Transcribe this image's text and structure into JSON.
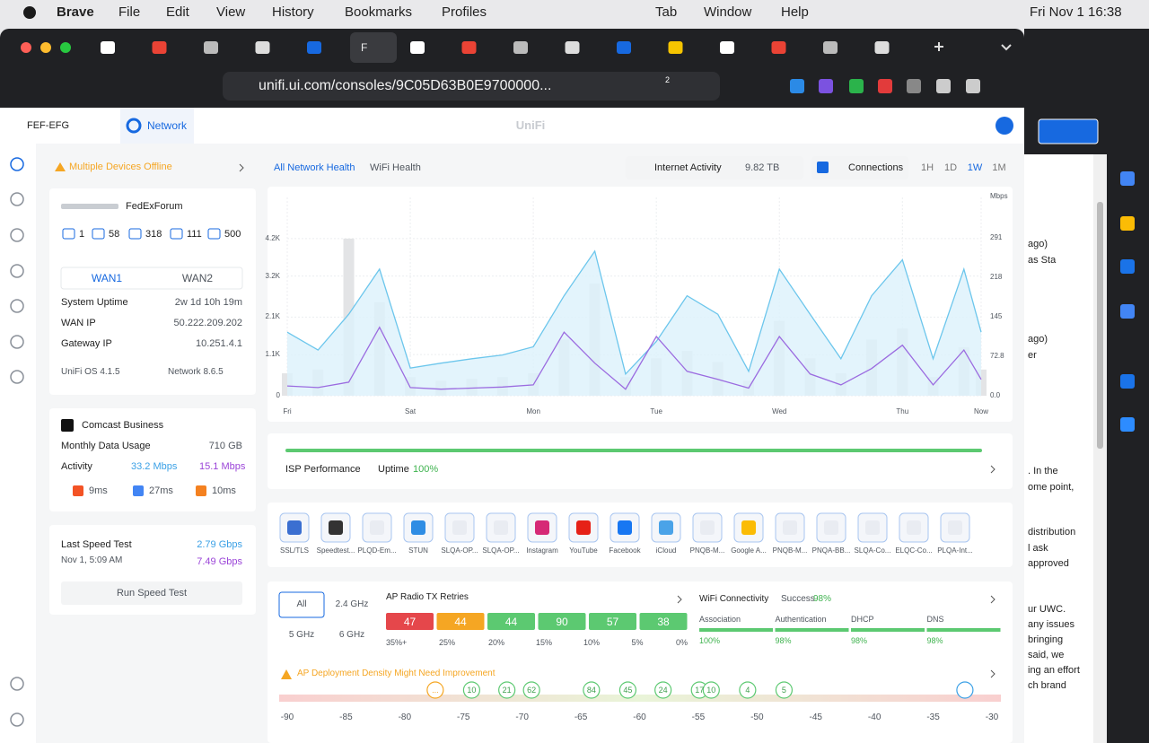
{
  "menubar": {
    "app": "Brave",
    "menus": [
      "File",
      "Edit",
      "View",
      "History",
      "Bookmarks",
      "Profiles"
    ],
    "right_menus": [
      "Tab",
      "Window",
      "Help"
    ],
    "clock": "Fri Nov 1  16:38"
  },
  "browser": {
    "active_tab": "F",
    "url": "unifi.ui.com/consoles/9C05D63B0E9700000...",
    "brave_badge": "2"
  },
  "unifi": {
    "site": "FEF-EFG",
    "nav_tab": "Network",
    "brand": "UniFi"
  },
  "alert": "Multiple Devices Offline",
  "gateway": {
    "name": "FedExForum",
    "stats": [
      "1",
      "58",
      "318",
      "111",
      "500"
    ],
    "wan_tabs": [
      "WAN1",
      "WAN2"
    ],
    "rows": [
      [
        "System Uptime",
        "2w 1d 10h 19m"
      ],
      [
        "WAN IP",
        "50.222.209.202"
      ],
      [
        "Gateway IP",
        "10.251.4.1"
      ]
    ],
    "versions": [
      "UniFi OS 4.1.5",
      "Network 8.6.5"
    ]
  },
  "isp": {
    "name": "Comcast Business",
    "monthly_label": "Monthly Data Usage",
    "monthly_value": "710 GB",
    "activity_label": "Activity",
    "down": "33.2 Mbps",
    "up": "15.1 Mbps",
    "latency": [
      "9ms",
      "27ms",
      "10ms"
    ]
  },
  "speed_test": {
    "label": "Last Speed Test",
    "date": "Nov 1, 5:09 AM",
    "down": "2.79 Gbps",
    "up": "7.49 Gbps",
    "button": "Run Speed Test"
  },
  "health_tabs": [
    "All Network Health",
    "WiFi Health"
  ],
  "legend": {
    "internet": "Internet Activity",
    "internet_total": "9.82 TB",
    "connections": "Connections"
  },
  "ranges": [
    "1H",
    "1D",
    "1W",
    "1M"
  ],
  "chart_data": {
    "type": "line",
    "y2_unit": "Mbps",
    "x": [
      0,
      0.25,
      0.5,
      0.75,
      1,
      1.25,
      1.5,
      1.75,
      2,
      2.25,
      2.5,
      2.75,
      3,
      3.25,
      3.5,
      3.75,
      4,
      4.25,
      4.5,
      4.75,
      5,
      5.25,
      5.5,
      5.64
    ],
    "xlim": [
      0,
      5.64
    ],
    "xticks": [
      {
        "value": 0,
        "label": "Fri"
      },
      {
        "value": 1,
        "label": "Sat"
      },
      {
        "value": 2,
        "label": "Mon"
      },
      {
        "value": 3,
        "label": "Tue"
      },
      {
        "value": 4,
        "label": "Wed"
      },
      {
        "value": 5,
        "label": "Thu"
      },
      {
        "value": 5.64,
        "label": "Now"
      }
    ],
    "ylim": [
      0,
      5300
    ],
    "yticks": [
      0,
      {
        "value": 1100,
        "label": "1.1K"
      },
      {
        "value": 2100,
        "label": "2.1K"
      },
      {
        "value": 3200,
        "label": "3.2K"
      },
      {
        "value": 4200,
        "label": "4.2K"
      }
    ],
    "y2lim": [
      0,
      365
    ],
    "y2ticks": [
      {
        "value": 0,
        "label": "0.0"
      },
      72.8,
      145,
      218,
      291
    ],
    "grid": true,
    "series": [
      {
        "type": "bar",
        "color": "#e3e4e6",
        "values": [
          600,
          700,
          4200,
          2500,
          500,
          400,
          450,
          500,
          600,
          1500,
          3000,
          500,
          1000,
          1200,
          900,
          400,
          2000,
          1000,
          600,
          1500,
          1800,
          500,
          1300,
          700
        ]
      },
      {
        "type": "area",
        "axis": "y2",
        "color": "#6cc6ec",
        "fill": "#dcf1fb",
        "values": [
          117,
          84,
          150,
          233,
          51,
          60,
          68,
          75,
          90,
          184,
          266,
          40,
          100,
          184,
          150,
          45,
          233,
          150,
          68,
          184,
          250,
          68,
          233,
          117
        ]
      },
      {
        "type": "line",
        "axis": "y2",
        "color": "#9b6be0",
        "values": [
          18,
          15,
          25,
          126,
          15,
          12,
          14,
          16,
          20,
          117,
          60,
          12,
          109,
          45,
          30,
          14,
          109,
          40,
          20,
          50,
          93,
          20,
          84,
          30
        ]
      }
    ]
  },
  "isp_performance": {
    "label": "ISP Performance",
    "uptime_label": "Uptime",
    "uptime": "100%"
  },
  "apps": [
    "SSL/TLS",
    "Speedtest...",
    "PLQD-Em...",
    "STUN",
    "SLQA-OP...",
    "SLQA-OP...",
    "Instagram",
    "YouTube",
    "Facebook",
    "iCloud",
    "PNQB-M...",
    "Google A...",
    "PNQB-M...",
    "PNQA-BB...",
    "SLQA-Co...",
    "ELQC-Co...",
    "PLQA-Int..."
  ],
  "radio": {
    "bands": [
      "All",
      "2.4 GHz",
      "5 GHz",
      "6 GHz"
    ],
    "title": "AP Radio TX Retries",
    "values": [
      47,
      44,
      44,
      90,
      57,
      38
    ],
    "colors": [
      "#e5474b",
      "#f5a623",
      "#5cc971",
      "#5cc971",
      "#5cc971",
      "#5cc971"
    ],
    "thresholds": [
      "35%+",
      "25%",
      "20%",
      "15%",
      "10%",
      "5%",
      "0%"
    ]
  },
  "wifi": {
    "title": "WiFi Connectivity",
    "success_label": "Success",
    "success": "98%",
    "items": [
      [
        "Association",
        "100%"
      ],
      [
        "Authentication",
        "98%"
      ],
      [
        "DHCP",
        "98%"
      ],
      [
        "DNS",
        "98%"
      ]
    ]
  },
  "density": {
    "title": "AP Deployment Density Might Need Improvement",
    "scale": [
      -90,
      -85,
      -80,
      -75,
      -70,
      -65,
      -60,
      -55,
      -50,
      -45,
      -40,
      -35,
      -30
    ],
    "markers": [
      {
        "label": "...",
        "x": -77.4
      },
      {
        "label": "10",
        "x": -74.3
      },
      {
        "label": "21",
        "x": -71.3
      },
      {
        "label": "62",
        "x": -69.2
      },
      {
        "label": "84",
        "x": -64.1
      },
      {
        "label": "45",
        "x": -61
      },
      {
        "label": "24",
        "x": -58
      },
      {
        "label": "17",
        "x": -54.9
      },
      {
        "label": "10",
        "x": -53.9
      },
      {
        "label": "4",
        "x": -50.8
      },
      {
        "label": "5",
        "x": -47.7
      },
      {
        "x": -32.3
      }
    ]
  },
  "side_window": {
    "fragments": [
      "ago)",
      "as Sta",
      "ago)",
      "er",
      ". In the",
      "ome point,",
      "distribution",
      "l ask",
      "approved",
      "ur UWC.",
      "any issues",
      "bringing",
      "said, we",
      "ing an effort",
      "ch brand"
    ]
  }
}
